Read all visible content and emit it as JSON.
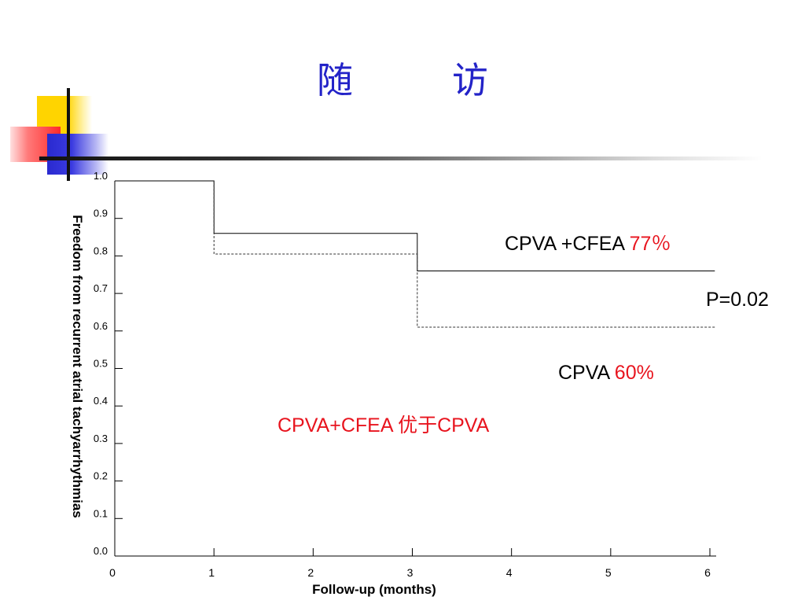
{
  "slide": {
    "title": "随　访"
  },
  "annotations": {
    "cfea_label": "CPVA +CFEA ",
    "cfea_value": "77％",
    "cpva_label": "CPVA ",
    "cpva_value": "60%",
    "p_value": "P=0.02",
    "comparison": "CPVA+CFEA 优于CPVA"
  },
  "colors": {
    "title": "#2323c8",
    "highlight": "#e8141e",
    "axis": "#000000"
  },
  "chart_data": {
    "type": "line",
    "title": "",
    "xlabel": "Follow-up (months)",
    "ylabel": "Freedom from recurrent atrial tachyarrhythmias",
    "xlim": [
      0,
      6
    ],
    "ylim": [
      0.0,
      1.0
    ],
    "x_ticks": [
      "0",
      "1",
      "2",
      "3",
      "4",
      "5",
      "6"
    ],
    "y_ticks": [
      "0.0",
      "0.1",
      "0.2",
      "0.3",
      "0.4",
      "0.5",
      "0.6",
      "0.7",
      "0.8",
      "0.9",
      "1.0"
    ],
    "grid": false,
    "step": true,
    "series": [
      {
        "name": "CPVA +CFEA",
        "style": "solid",
        "x": [
          0,
          1,
          1,
          3.05,
          3.05,
          6.05
        ],
        "y": [
          1.0,
          1.0,
          0.86,
          0.86,
          0.76,
          0.76
        ]
      },
      {
        "name": "CPVA",
        "style": "dashed",
        "x": [
          1,
          1,
          3.05,
          3.05,
          6.05
        ],
        "y": [
          1.0,
          0.805,
          0.805,
          0.61,
          0.61
        ]
      }
    ]
  }
}
